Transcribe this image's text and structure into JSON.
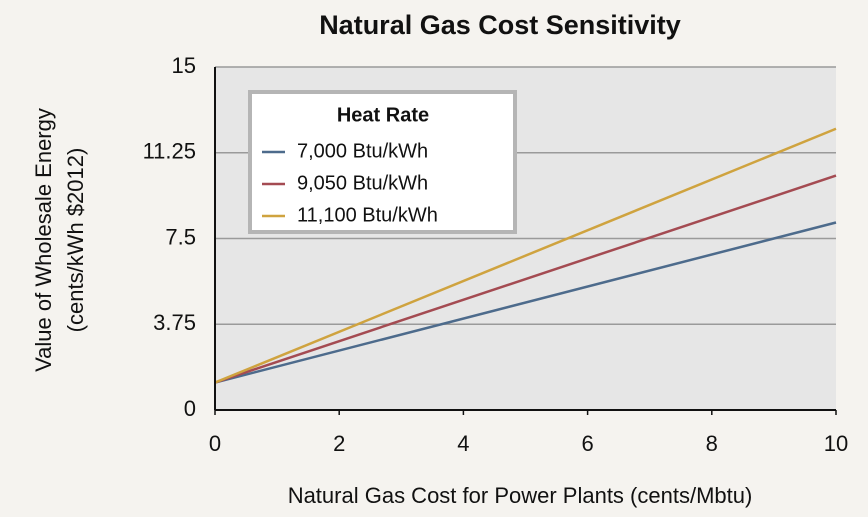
{
  "chart_data": {
    "type": "line",
    "title": "Natural Gas Cost Sensitivity",
    "xlabel": "Natural Gas Cost for Power Plants (cents/Mbtu)",
    "ylabel": [
      "Value of Wholesale Energy",
      "(cents/kWh $2012)"
    ],
    "legend_title": "Heat Rate",
    "legend": "upper left",
    "grid": true,
    "x": [
      0,
      10
    ],
    "series": [
      {
        "name": "7,000 Btu/kWh",
        "color": "#4d6b8c",
        "values": [
          1.2,
          8.2
        ]
      },
      {
        "name": "9,050 Btu/kWh",
        "color": "#a44b52",
        "values": [
          1.2,
          10.25
        ]
      },
      {
        "name": "11,100 Btu/kWh",
        "color": "#cfa33f",
        "values": [
          1.2,
          12.3
        ]
      }
    ],
    "xlim": [
      0,
      10
    ],
    "xticks": [
      0,
      2,
      4,
      6,
      8,
      10
    ],
    "ylim": [
      0,
      15
    ],
    "yticks": [
      0,
      3.75,
      7.5,
      11.25,
      15
    ]
  }
}
